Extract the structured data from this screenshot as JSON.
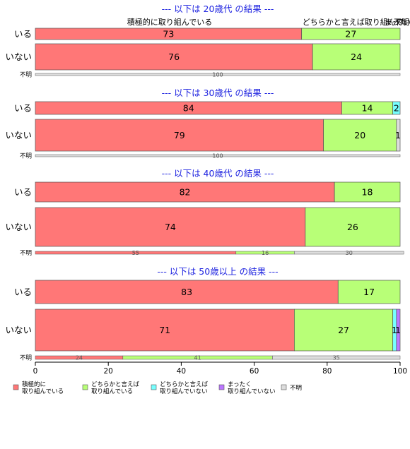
{
  "chart_data": {
    "type": "bar",
    "orientation": "horizontal",
    "stacked": "percent",
    "xlim": [
      0,
      100
    ],
    "xticks": [
      0,
      20,
      40,
      60,
      80,
      100
    ],
    "colors": {
      "positive": "#ff7777",
      "somewhat_positive": "#b8ff77",
      "somewhat_negative": "#77ffff",
      "negative": "#bb77ff",
      "unknown": "#dddddd",
      "title": "#1f24e0"
    },
    "series": [
      {
        "name": "積極的に\n取り組んでいる",
        "key": "positive"
      },
      {
        "name": "どちらかと言えば\n取り組んでいる",
        "key": "somewhat_positive"
      },
      {
        "name": "どちらかと言えば\n取り組んでいない",
        "key": "somewhat_negative"
      },
      {
        "name": "まったく\n取り組んでいない",
        "key": "negative"
      },
      {
        "name": "不明",
        "key": "unknown"
      }
    ],
    "panels": [
      {
        "title": "--- 以下は 20歳代 の結果 ---",
        "overlay_labels": [
          "積極的に取り組んでいる",
          "どちらかと言えば取り組んでいる",
          "まった",
          "不明"
        ],
        "rows": [
          {
            "label": "いる",
            "values": [
              73,
              27,
              0,
              0,
              0
            ],
            "shown": [
              "73",
              "27",
              "",
              "",
              ""
            ]
          },
          {
            "label": "いない",
            "values": [
              76,
              24,
              0,
              0,
              0
            ],
            "shown": [
              "76",
              "24",
              "",
              "",
              ""
            ]
          },
          {
            "label": "不明",
            "values": [
              0,
              0,
              0,
              0,
              100
            ],
            "shown": [
              "",
              "",
              "",
              "",
              "100"
            ]
          }
        ]
      },
      {
        "title": "--- 以下は 30歳代 の結果 ---",
        "rows": [
          {
            "label": "いる",
            "values": [
              84,
              14,
              2,
              0,
              0
            ],
            "shown": [
              "84",
              "14",
              "2",
              "",
              ""
            ]
          },
          {
            "label": "いない",
            "values": [
              79,
              20,
              0,
              0,
              1
            ],
            "shown": [
              "79",
              "20",
              "",
              "",
              "1"
            ]
          },
          {
            "label": "不明",
            "values": [
              0,
              0,
              0,
              0,
              100
            ],
            "shown": [
              "",
              "",
              "",
              "",
              "100"
            ]
          }
        ]
      },
      {
        "title": "--- 以下は 40歳代 の結果 ---",
        "rows": [
          {
            "label": "いる",
            "values": [
              82,
              18,
              0,
              0,
              0
            ],
            "shown": [
              "82",
              "18",
              "",
              "",
              ""
            ]
          },
          {
            "label": "いない",
            "values": [
              74,
              26,
              0,
              0,
              0
            ],
            "shown": [
              "74",
              "26",
              "",
              "",
              ""
            ]
          },
          {
            "label": "不明",
            "values": [
              55,
              16,
              0,
              0,
              30
            ],
            "shown": [
              "55",
              "16",
              "",
              "",
              "30"
            ]
          }
        ]
      },
      {
        "title": "--- 以下は 50歳以上 の結果 ---",
        "rows": [
          {
            "label": "いる",
            "values": [
              83,
              17,
              0,
              0,
              0
            ],
            "shown": [
              "83",
              "17",
              "",
              "",
              ""
            ]
          },
          {
            "label": "いない",
            "values": [
              71,
              27,
              1,
              1,
              0
            ],
            "shown": [
              "71",
              "27",
              "1",
              "1",
              ""
            ]
          },
          {
            "label": "不明",
            "values": [
              24,
              41,
              0,
              0,
              35
            ],
            "shown": [
              "24",
              "41",
              "",
              "",
              "35"
            ]
          }
        ]
      }
    ]
  }
}
